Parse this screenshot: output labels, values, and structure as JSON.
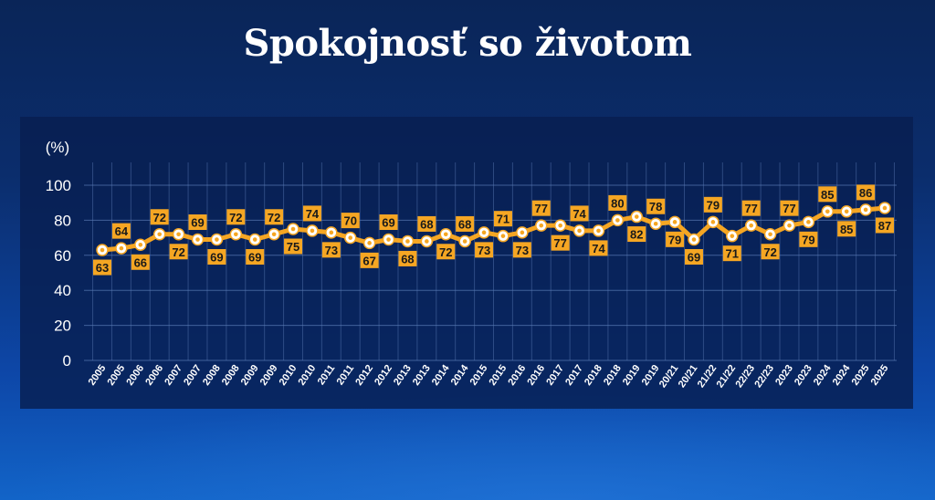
{
  "title": "Spokojnosť so životom",
  "colors": {
    "line": "#f5a623",
    "label_bg": "#f5a623",
    "label_text": "#1a1a1a",
    "marker_fill": "#ffffff",
    "axis_text": "#ffffff",
    "grid": "#5a7bb5"
  },
  "chart_data": {
    "type": "line",
    "title": "Spokojnosť so životom",
    "ylabel": "(%)",
    "xlabel": "",
    "ylim": [
      0,
      100
    ],
    "yticks": [
      0,
      20,
      40,
      60,
      80,
      100
    ],
    "grid": true,
    "legend": null,
    "categories": [
      "2005",
      "2005",
      "2006",
      "2006",
      "2007",
      "2007",
      "2008",
      "2008",
      "2009",
      "2009",
      "2010",
      "2010",
      "2011",
      "2011",
      "2012",
      "2012",
      "2013",
      "2013",
      "2014",
      "2014",
      "2015",
      "2015",
      "2016",
      "2016",
      "2017",
      "2017",
      "2018",
      "2018",
      "2019",
      "2019",
      "20/21",
      "20/21",
      "21/22",
      "21/22",
      "22/23",
      "22/23",
      "2023",
      "2023",
      "2024",
      "2024",
      "2025",
      "2025"
    ],
    "series": [
      {
        "name": "Spokojnosť so životom",
        "values": [
          63,
          64,
          66,
          72,
          72,
          69,
          69,
          72,
          69,
          72,
          75,
          74,
          73,
          70,
          67,
          69,
          68,
          68,
          72,
          68,
          73,
          71,
          73,
          77,
          77,
          74,
          74,
          80,
          82,
          78,
          79,
          69,
          79,
          71,
          77,
          72,
          77,
          79,
          85,
          85,
          86,
          87
        ],
        "label_positions": [
          "below",
          "above",
          "below",
          "above",
          "below",
          "above",
          "below",
          "above",
          "below",
          "above",
          "below",
          "above",
          "below",
          "above",
          "below",
          "above",
          "below",
          "above",
          "below",
          "above",
          "below",
          "above",
          "below",
          "above",
          "below",
          "above",
          "below",
          "above",
          "below",
          "above",
          "below",
          "below",
          "above",
          "below",
          "above",
          "below",
          "above",
          "below",
          "above",
          "below",
          "above",
          "below"
        ]
      }
    ]
  }
}
